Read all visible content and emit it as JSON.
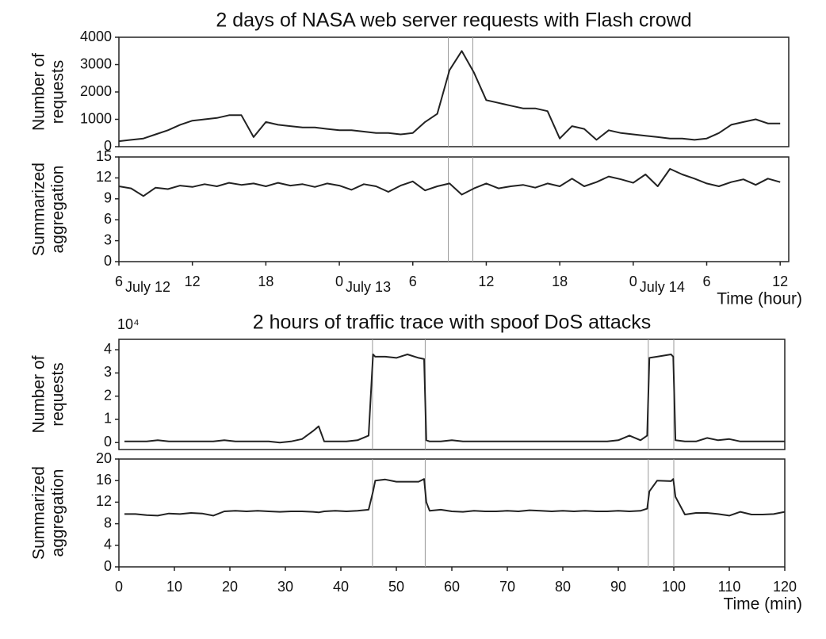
{
  "chart_data": [
    {
      "type": "line",
      "title": "2 days of NASA web server requests with Flash crowd",
      "ylabel": [
        "Number of",
        "requests"
      ],
      "x": [
        6,
        7,
        8,
        9,
        10,
        11,
        12,
        13,
        14,
        15,
        16,
        17,
        18,
        19,
        20,
        21,
        22,
        23,
        24,
        25,
        26,
        27,
        28,
        29,
        30,
        31,
        32,
        33,
        34,
        35,
        36,
        37,
        38,
        39,
        40,
        41,
        42,
        43,
        44,
        45,
        46,
        47,
        48,
        49,
        50,
        51,
        52,
        53,
        54,
        55,
        56,
        57,
        58,
        59,
        60
      ],
      "values": [
        200,
        250,
        300,
        450,
        600,
        800,
        950,
        1000,
        1050,
        1150,
        1150,
        350,
        900,
        800,
        750,
        700,
        700,
        650,
        600,
        600,
        550,
        500,
        500,
        450,
        500,
        900,
        1200,
        2800,
        3500,
        2700,
        1700,
        1600,
        1500,
        1400,
        1400,
        1300,
        300,
        750,
        650,
        250,
        600,
        500,
        450,
        400,
        350,
        300,
        300,
        250,
        300,
        500,
        800,
        900,
        1000,
        850,
        850
      ],
      "color": "#222222",
      "xlim": [
        6,
        60.7
      ],
      "ylim": [
        0,
        4000
      ],
      "yticks": [
        0,
        1000,
        2000,
        3000,
        4000
      ],
      "vlines": [
        32.9,
        34.9
      ]
    },
    {
      "type": "line",
      "ylabel": [
        "Summarized",
        "aggregation"
      ],
      "xlabel": "Time (hour)",
      "x": [
        6,
        7,
        8,
        9,
        10,
        11,
        12,
        13,
        14,
        15,
        16,
        17,
        18,
        19,
        20,
        21,
        22,
        23,
        24,
        25,
        26,
        27,
        28,
        29,
        30,
        31,
        32,
        33,
        34,
        35,
        36,
        37,
        38,
        39,
        40,
        41,
        42,
        43,
        44,
        45,
        46,
        47,
        48,
        49,
        50,
        51,
        52,
        53,
        54,
        55,
        56,
        57,
        58,
        59,
        60
      ],
      "values": [
        10.8,
        10.5,
        9.4,
        10.6,
        10.4,
        10.9,
        10.7,
        11.1,
        10.8,
        11.3,
        11,
        11.2,
        10.8,
        11.3,
        10.9,
        11.1,
        10.7,
        11.2,
        10.9,
        10.3,
        11.1,
        10.8,
        10,
        10.9,
        11.5,
        10.2,
        10.8,
        11.2,
        9.6,
        10.5,
        11.2,
        10.5,
        10.8,
        11,
        10.6,
        11.2,
        10.8,
        11.9,
        10.8,
        11.4,
        12.2,
        11.8,
        11.3,
        12.5,
        10.8,
        13.3,
        12.5,
        11.9,
        11.2,
        10.8,
        11.4,
        11.8,
        11,
        11.9,
        11.4
      ],
      "color": "#222222",
      "xlim": [
        6,
        60.7
      ],
      "ylim": [
        0,
        15
      ],
      "yticks": [
        0,
        3,
        6,
        9,
        12,
        15
      ],
      "xticks": [
        6,
        12,
        18,
        {
          "value": 24,
          "label": "0"
        },
        {
          "value": 30,
          "label": "6"
        },
        {
          "value": 36,
          "label": "12"
        },
        {
          "value": 42,
          "label": "18"
        },
        {
          "value": 48,
          "label": "0"
        },
        {
          "value": 54,
          "label": "6"
        },
        {
          "value": 60,
          "label": "12"
        }
      ],
      "date_labels": [
        "July 12",
        "July 13",
        "July 14"
      ],
      "vlines": [
        32.9,
        34.9
      ]
    },
    {
      "type": "line",
      "title": "2 hours of traffic trace with spoof DoS attacks",
      "ylabel": [
        "Number of",
        "requests"
      ],
      "axis_multiplier": "10⁴",
      "x": [
        1,
        3,
        5,
        7,
        9,
        11,
        13,
        15,
        17,
        19,
        21,
        23,
        25,
        27,
        29,
        31,
        33,
        35,
        36,
        37,
        39,
        41,
        43,
        45,
        45.8,
        46.2,
        48,
        50,
        52,
        54,
        55,
        55.4,
        56,
        58,
        60,
        62,
        64,
        66,
        68,
        70,
        72,
        74,
        76,
        78,
        80,
        82,
        84,
        86,
        88,
        90,
        92,
        94,
        95.2,
        95.6,
        97,
        99.5,
        99.9,
        100.3,
        102,
        104,
        106,
        108,
        110,
        112,
        114,
        116,
        118,
        120
      ],
      "values": [
        0.05,
        0.05,
        0.05,
        0.1,
        0.05,
        0.05,
        0.05,
        0.05,
        0.05,
        0.1,
        0.05,
        0.05,
        0.05,
        0.05,
        0,
        0.05,
        0.15,
        0.5,
        0.7,
        0.05,
        0.05,
        0.05,
        0.1,
        0.3,
        3.8,
        3.7,
        3.7,
        3.65,
        3.8,
        3.65,
        3.6,
        0.1,
        0.05,
        0.05,
        0.1,
        0.05,
        0.05,
        0.05,
        0.05,
        0.05,
        0.05,
        0.05,
        0.05,
        0.05,
        0.05,
        0.05,
        0.05,
        0.05,
        0.05,
        0.1,
        0.3,
        0.1,
        0.3,
        3.65,
        3.7,
        3.8,
        3.7,
        0.1,
        0.05,
        0.05,
        0.2,
        0.1,
        0.15,
        0.05,
        0.05,
        0.05,
        0.05,
        0.05
      ],
      "color": "#222222",
      "xlim": [
        0,
        120
      ],
      "ylim": [
        -0.3,
        4.45
      ],
      "yticks": [
        0,
        1,
        2,
        3,
        4
      ],
      "vlines": [
        45.7,
        55.2,
        95.4,
        100
      ]
    },
    {
      "type": "line",
      "ylabel": [
        "Summarized",
        "aggregation"
      ],
      "xlabel": "Time (min)",
      "x": [
        1,
        3,
        5,
        7,
        9,
        11,
        13,
        15,
        17,
        19,
        21,
        23,
        25,
        27,
        29,
        31,
        33,
        35,
        36,
        37,
        39,
        41,
        43,
        45,
        45.8,
        46.2,
        48,
        50,
        52,
        54,
        55,
        55.4,
        56,
        58,
        60,
        62,
        64,
        66,
        68,
        70,
        72,
        74,
        76,
        78,
        80,
        82,
        84,
        86,
        88,
        90,
        92,
        94,
        95.2,
        95.6,
        97,
        99.5,
        99.9,
        100.3,
        102,
        104,
        106,
        108,
        110,
        112,
        114,
        116,
        118,
        120
      ],
      "values": [
        9.8,
        9.8,
        9.6,
        9.5,
        9.9,
        9.8,
        10,
        9.9,
        9.5,
        10.3,
        10.4,
        10.3,
        10.4,
        10.3,
        10.2,
        10.3,
        10.3,
        10.2,
        10.1,
        10.3,
        10.4,
        10.3,
        10.4,
        10.6,
        14,
        16,
        16.2,
        15.8,
        15.8,
        15.8,
        16.3,
        12,
        10.4,
        10.6,
        10.3,
        10.2,
        10.4,
        10.3,
        10.3,
        10.4,
        10.3,
        10.5,
        10.4,
        10.3,
        10.4,
        10.3,
        10.4,
        10.3,
        10.3,
        10.4,
        10.3,
        10.4,
        10.8,
        14,
        16,
        15.9,
        16.3,
        13,
        9.7,
        10,
        10,
        9.8,
        9.5,
        10.2,
        9.7,
        9.7,
        9.8,
        10.2
      ],
      "color": "#222222",
      "xlim": [
        0,
        120
      ],
      "ylim": [
        0,
        20
      ],
      "yticks": [
        0,
        4,
        8,
        12,
        16,
        20
      ],
      "xticks": [
        0,
        10,
        20,
        30,
        40,
        50,
        60,
        70,
        80,
        90,
        100,
        110,
        120
      ],
      "vlines": [
        45.7,
        55.2,
        95.4,
        100
      ]
    }
  ]
}
